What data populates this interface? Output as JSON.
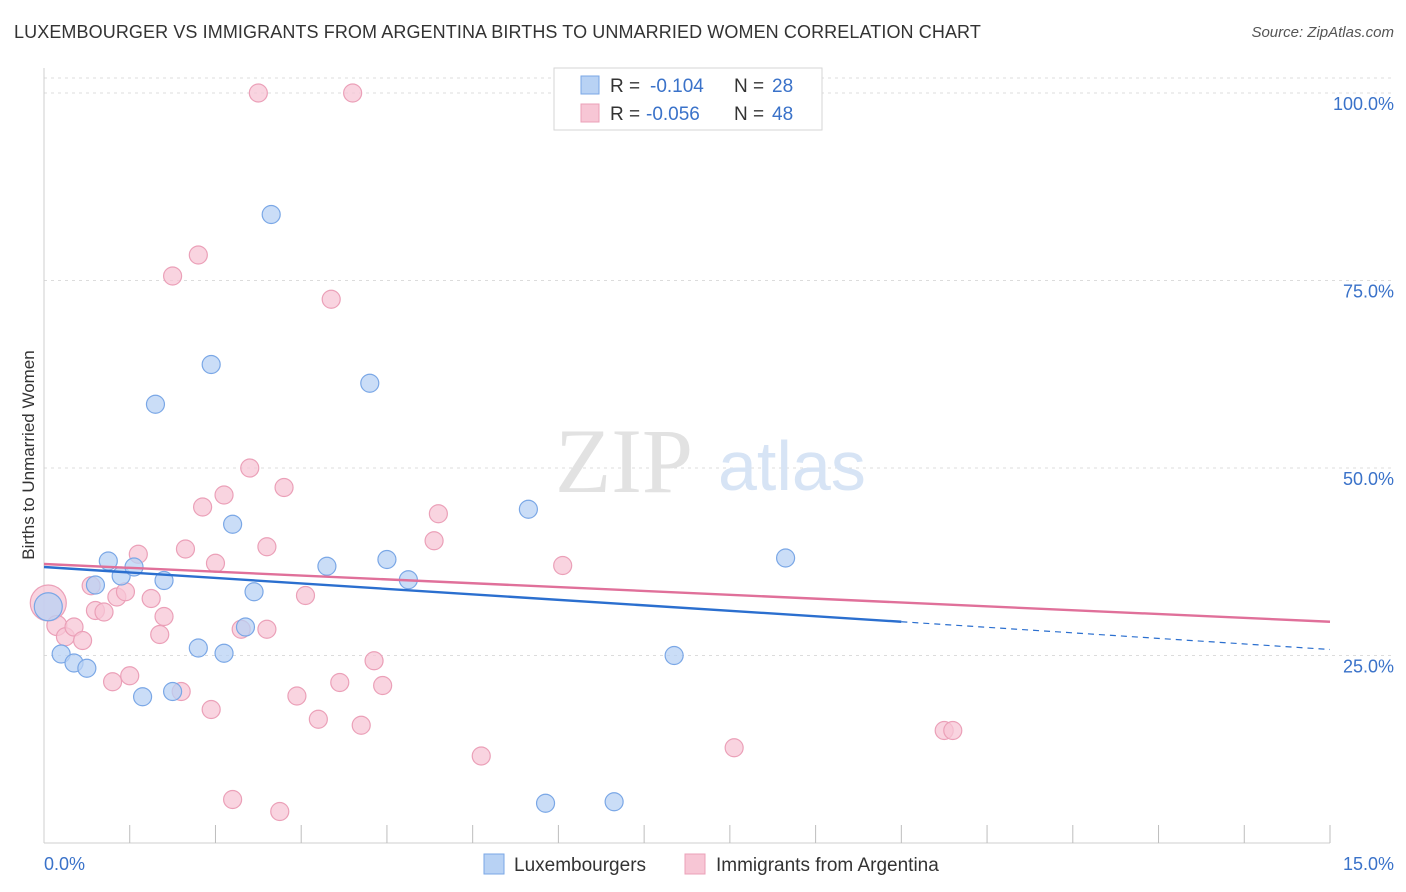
{
  "header": {
    "title": "LUXEMBOURGER VS IMMIGRANTS FROM ARGENTINA BIRTHS TO UNMARRIED WOMEN CORRELATION CHART",
    "source": "Source: ZipAtlas.com"
  },
  "watermark": {
    "zip": "ZIP",
    "atlas": "atlas"
  },
  "chart_data": {
    "type": "scatter",
    "title": "LUXEMBOURGER VS IMMIGRANTS FROM ARGENTINA BIRTHS TO UNMARRIED WOMEN CORRELATION CHART",
    "xlabel": "",
    "ylabel": "Births to Unmarried Women",
    "xlim": [
      0,
      15
    ],
    "ylim": [
      0,
      102
    ],
    "x_tick_labels": [
      "0.0%",
      "15.0%"
    ],
    "y_ticks": [
      25,
      50,
      75,
      100
    ],
    "y_tick_labels": [
      "25.0%",
      "50.0%",
      "75.0%",
      "100.0%"
    ],
    "grid": true,
    "legend_position": "top-center",
    "stats": [
      {
        "r_label": "R =",
        "r_value": "-0.104",
        "n_label": "N =",
        "n_value": "28"
      },
      {
        "r_label": "R =",
        "r_value": "-0.056",
        "n_label": "N =",
        "n_value": "48"
      }
    ],
    "series": [
      {
        "name": "Luxembourgers",
        "color": "#7aa7e6",
        "fill": "#b8d2f4",
        "line_color": "#2b6fcf",
        "trend": {
          "x0": 0,
          "y0": 36.8,
          "x1": 10.0,
          "y1": 29.5,
          "dash_x1": 15,
          "dash_y1": 25.8
        },
        "points": [
          [
            0.05,
            31.5,
            14
          ],
          [
            0.2,
            25.2,
            9
          ],
          [
            0.35,
            24.0,
            9
          ],
          [
            0.5,
            23.3,
            9
          ],
          [
            0.6,
            34.4,
            9
          ],
          [
            0.75,
            37.6,
            9
          ],
          [
            0.9,
            35.6,
            9
          ],
          [
            1.05,
            36.8,
            9
          ],
          [
            1.15,
            19.5,
            9
          ],
          [
            1.3,
            58.5,
            9
          ],
          [
            1.4,
            35.0,
            9
          ],
          [
            1.5,
            20.2,
            9
          ],
          [
            1.8,
            26.0,
            9
          ],
          [
            1.95,
            63.8,
            9
          ],
          [
            2.1,
            25.3,
            9
          ],
          [
            2.2,
            42.5,
            9
          ],
          [
            2.35,
            28.8,
            9
          ],
          [
            2.45,
            33.5,
            9
          ],
          [
            2.65,
            83.8,
            9
          ],
          [
            3.3,
            36.9,
            9
          ],
          [
            3.8,
            61.3,
            9
          ],
          [
            4.0,
            37.8,
            9
          ],
          [
            4.25,
            35.1,
            9
          ],
          [
            5.65,
            44.5,
            9
          ],
          [
            5.85,
            5.3,
            9
          ],
          [
            6.65,
            5.5,
            9
          ],
          [
            7.35,
            25.0,
            9
          ],
          [
            8.65,
            38.0,
            9
          ]
        ]
      },
      {
        "name": "Immigrants from Argentina",
        "color": "#eba0b8",
        "fill": "#f7c6d5",
        "line_color": "#e0709a",
        "trend": {
          "x0": 0,
          "y0": 37.2,
          "x1": 15,
          "y1": 29.5
        },
        "points": [
          [
            0.05,
            32.0,
            18
          ],
          [
            0.15,
            29.0,
            10
          ],
          [
            0.25,
            27.5,
            9
          ],
          [
            0.35,
            28.8,
            9
          ],
          [
            0.45,
            27.0,
            9
          ],
          [
            0.55,
            34.3,
            9
          ],
          [
            0.6,
            31.0,
            9
          ],
          [
            0.7,
            30.8,
            9
          ],
          [
            0.8,
            21.5,
            9
          ],
          [
            0.85,
            32.8,
            9
          ],
          [
            0.95,
            33.5,
            9
          ],
          [
            1.0,
            22.3,
            9
          ],
          [
            1.1,
            38.5,
            9
          ],
          [
            1.25,
            32.6,
            9
          ],
          [
            1.35,
            27.8,
            9
          ],
          [
            1.4,
            30.2,
            9
          ],
          [
            1.5,
            75.6,
            9
          ],
          [
            1.6,
            20.2,
            9
          ],
          [
            1.65,
            39.2,
            9
          ],
          [
            1.8,
            78.4,
            9
          ],
          [
            1.85,
            44.8,
            9
          ],
          [
            1.95,
            17.8,
            9
          ],
          [
            2.0,
            37.3,
            9
          ],
          [
            2.1,
            46.4,
            9
          ],
          [
            2.2,
            5.8,
            9
          ],
          [
            2.3,
            28.5,
            9
          ],
          [
            2.4,
            50.0,
            9
          ],
          [
            2.5,
            100.0,
            9
          ],
          [
            2.6,
            39.5,
            9
          ],
          [
            2.75,
            4.2,
            9
          ],
          [
            2.8,
            47.4,
            9
          ],
          [
            2.95,
            19.6,
            9
          ],
          [
            3.05,
            33.0,
            9
          ],
          [
            3.2,
            16.5,
            9
          ],
          [
            3.35,
            72.5,
            9
          ],
          [
            3.45,
            21.4,
            9
          ],
          [
            3.6,
            100.0,
            9
          ],
          [
            3.7,
            15.7,
            9
          ],
          [
            3.85,
            24.3,
            9
          ],
          [
            3.95,
            21.0,
            9
          ],
          [
            4.55,
            40.3,
            9
          ],
          [
            4.6,
            43.9,
            9
          ],
          [
            5.1,
            11.6,
            9
          ],
          [
            6.05,
            37.0,
            9
          ],
          [
            8.05,
            12.7,
            9
          ],
          [
            10.5,
            15.0,
            9
          ],
          [
            10.6,
            15.0,
            9
          ],
          [
            2.6,
            28.5,
            9
          ]
        ]
      }
    ]
  }
}
